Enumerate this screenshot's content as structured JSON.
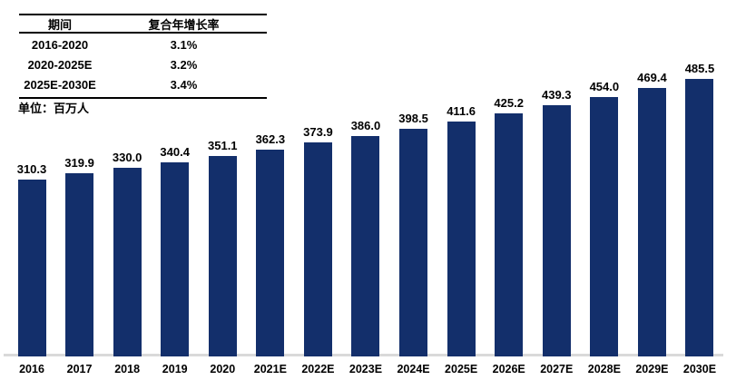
{
  "table": {
    "headers": [
      "期间",
      "复合年增长率"
    ],
    "rows": [
      {
        "period": "2016-2020",
        "cagr": "3.1%"
      },
      {
        "period": "2020-2025E",
        "cagr": "3.2%"
      },
      {
        "period": "2025E-2030E",
        "cagr": "3.4%"
      }
    ]
  },
  "unit_label": "单位：百万人",
  "chart_data": {
    "type": "bar",
    "categories": [
      "2016",
      "2017",
      "2018",
      "2019",
      "2020",
      "2021E",
      "2022E",
      "2023E",
      "2024E",
      "2025E",
      "2026E",
      "2027E",
      "2028E",
      "2029E",
      "2030E"
    ],
    "values": [
      310.3,
      319.9,
      330.0,
      340.4,
      351.1,
      362.3,
      373.9,
      386.0,
      398.5,
      411.6,
      425.2,
      439.3,
      454.0,
      469.4,
      485.5
    ],
    "value_labels": [
      "310.3",
      "319.9",
      "330.0",
      "340.4",
      "351.1",
      "362.3",
      "373.9",
      "386.0",
      "398.5",
      "411.6",
      "425.2",
      "439.3",
      "454.0",
      "469.4",
      "485.5"
    ],
    "title": "",
    "xlabel": "",
    "ylabel": "单位：百万人",
    "ylim": [
      0,
      620
    ],
    "grid": false,
    "legend": false,
    "data_labels": true,
    "bar_color": "#132f6b",
    "axis_line_color": "#d9d9d9",
    "label_color": "#000000"
  }
}
